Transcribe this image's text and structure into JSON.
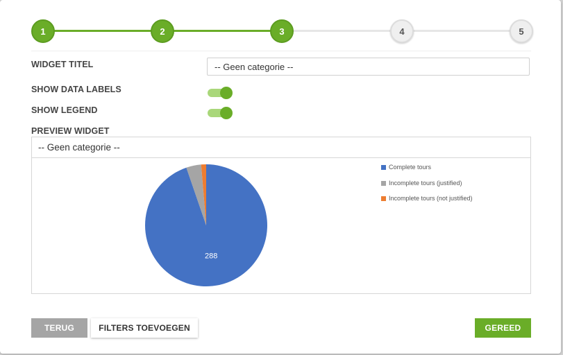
{
  "stepper": {
    "steps": [
      {
        "label": "1",
        "state": "done"
      },
      {
        "label": "2",
        "state": "done"
      },
      {
        "label": "3",
        "state": "done"
      },
      {
        "label": "4",
        "state": "todo"
      },
      {
        "label": "5",
        "state": "todo"
      }
    ]
  },
  "form": {
    "widget_title_label": "WIDGET TITEL",
    "widget_title_value": "-- Geen categorie --",
    "show_data_labels_label": "SHOW DATA LABELS",
    "show_data_labels_on": true,
    "show_legend_label": "SHOW LEGEND",
    "show_legend_on": true,
    "preview_label": "PREVIEW WIDGET"
  },
  "preview": {
    "header": "-- Geen categorie --"
  },
  "chart_data": {
    "type": "pie",
    "categories": [
      "Complete tours",
      "Incomplete tours (justified)",
      "Incomplete tours (not justified)"
    ],
    "values": [
      288,
      12,
      4
    ],
    "data_labels": [
      "288",
      "",
      ""
    ],
    "colors": [
      "#4472c4",
      "#a5a5a5",
      "#ed7d31"
    ],
    "legend_position": "right"
  },
  "buttons": {
    "back": "TERUG",
    "filters": "FILTERS TOEVOEGEN",
    "done": "GEREED"
  },
  "colors": {
    "accent": "#6aad28",
    "inactive": "#a5a5a5"
  }
}
